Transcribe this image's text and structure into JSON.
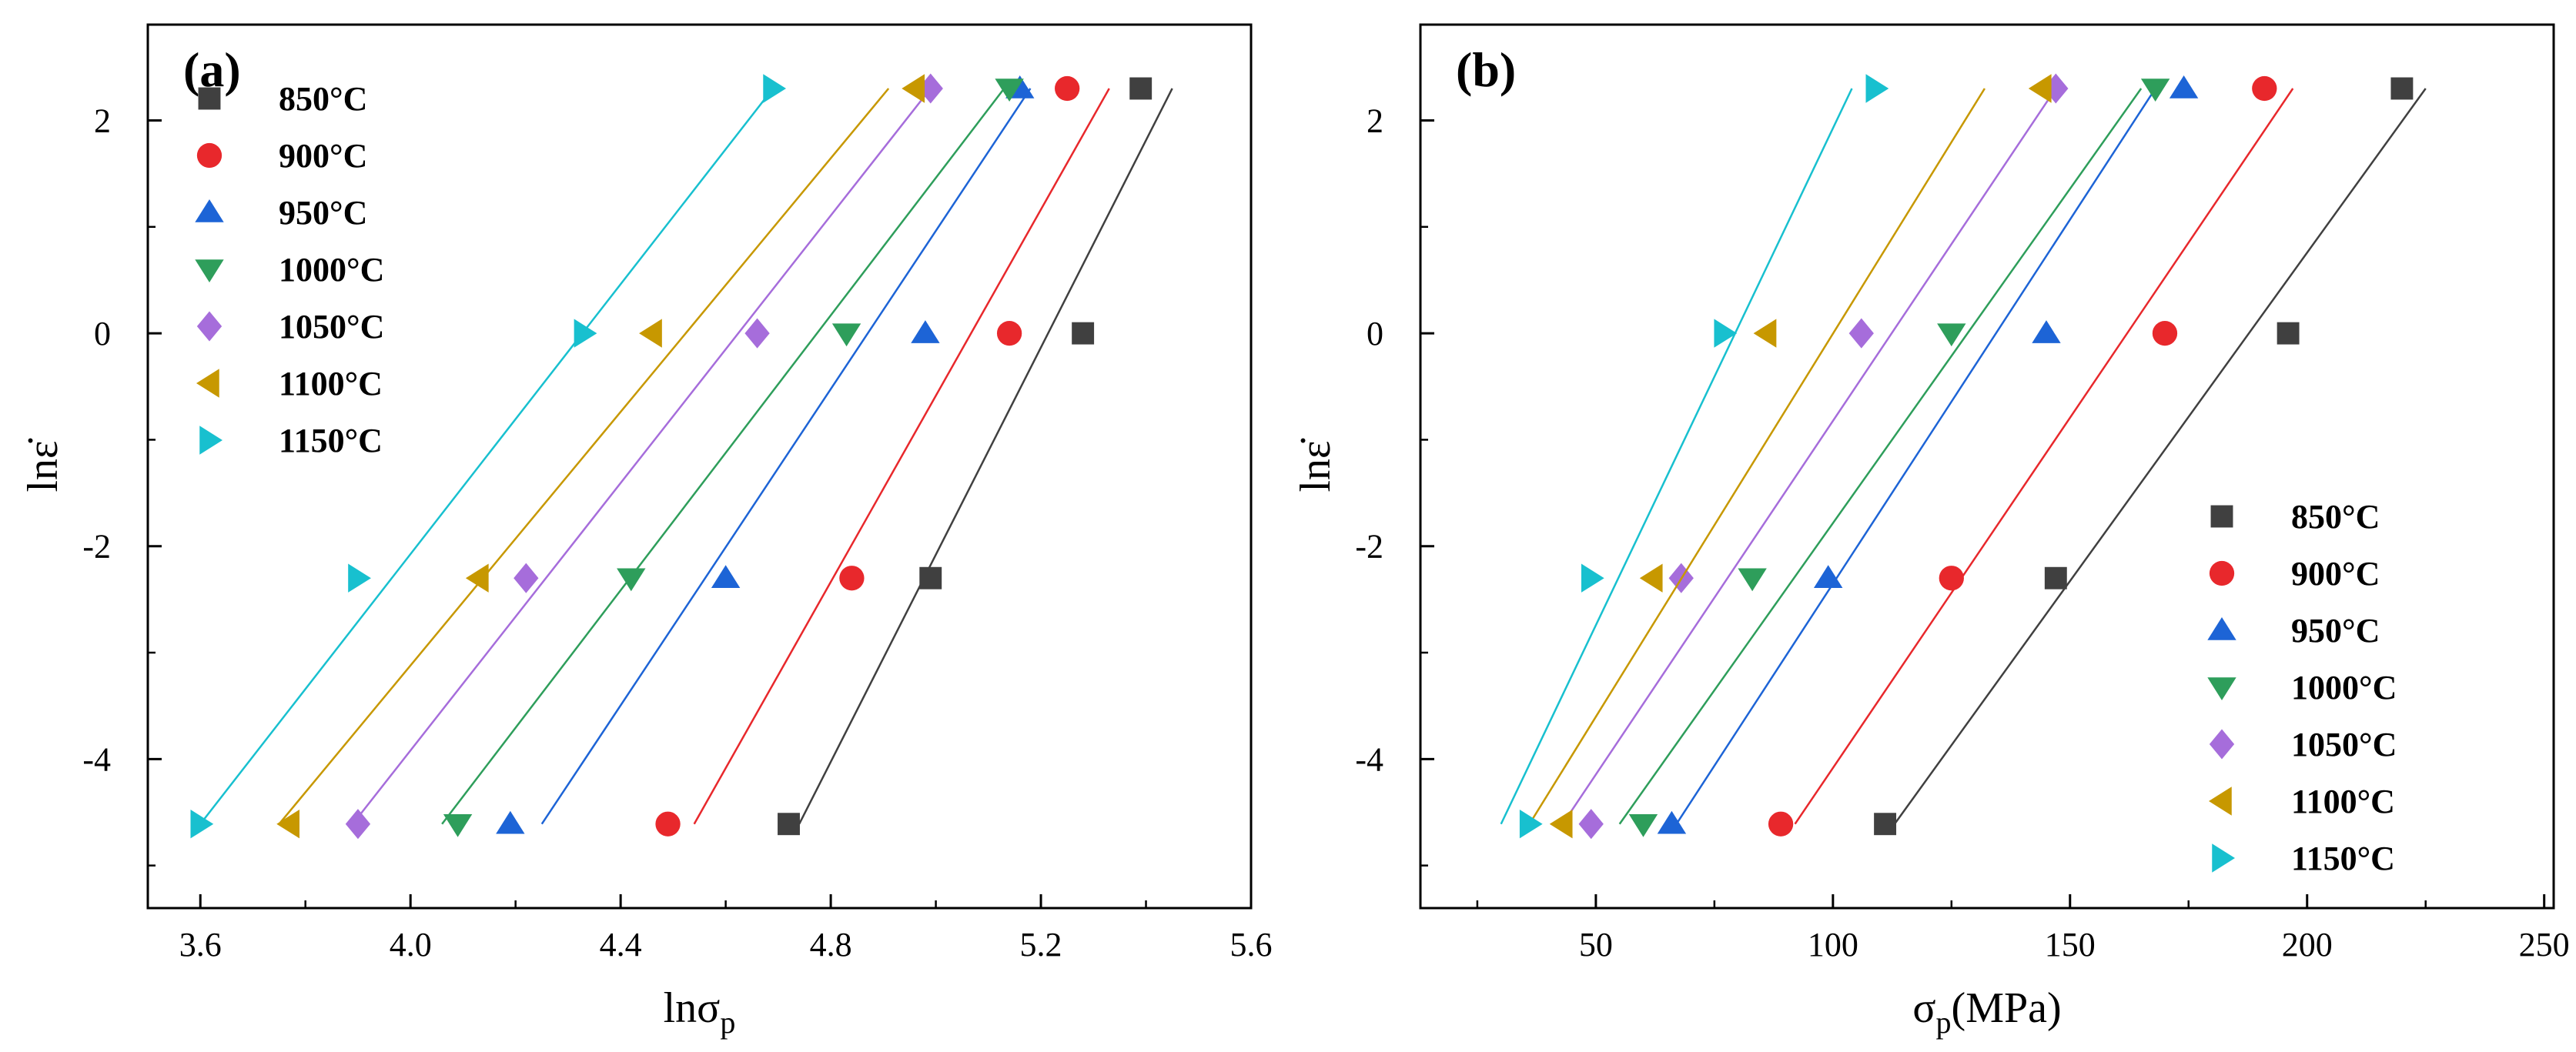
{
  "chart_data": [
    {
      "type": "scatter",
      "panel_label": "(a)",
      "xlabel": "lnσ",
      "xlabel_sub": "p",
      "ylabel": "lnε̇",
      "xlim": [
        3.5,
        5.6
      ],
      "ylim": [
        -5.4,
        2.9
      ],
      "xticks": [
        3.6,
        4.0,
        4.4,
        4.8,
        5.2,
        5.6
      ],
      "xtick_labels": [
        "3.6",
        "4.0",
        "4.4",
        "4.8",
        "5.2",
        "5.6"
      ],
      "yticks": [
        2,
        0,
        -2,
        -4
      ],
      "ytick_labels": [
        "2",
        "0",
        "-2",
        "-4"
      ],
      "legend_position": "top-left",
      "series": [
        {
          "name": "850°C",
          "color": "#404040",
          "marker": "square",
          "points": [
            [
              4.72,
              -4.61
            ],
            [
              4.99,
              -2.3
            ],
            [
              5.28,
              0.0
            ],
            [
              5.39,
              2.3
            ]
          ],
          "fit": [
            [
              4.74,
              -4.61
            ],
            [
              5.45,
              2.3
            ]
          ]
        },
        {
          "name": "900°C",
          "color": "#e8282c",
          "marker": "circle",
          "points": [
            [
              4.49,
              -4.61
            ],
            [
              4.84,
              -2.3
            ],
            [
              5.14,
              0.0
            ],
            [
              5.25,
              2.3
            ]
          ],
          "fit": [
            [
              4.54,
              -4.61
            ],
            [
              5.33,
              2.3
            ]
          ]
        },
        {
          "name": "950°C",
          "color": "#1d64d6",
          "marker": "triangle-up",
          "points": [
            [
              4.19,
              -4.61
            ],
            [
              4.6,
              -2.3
            ],
            [
              4.98,
              0.0
            ],
            [
              5.16,
              2.3
            ]
          ],
          "fit": [
            [
              4.25,
              -4.61
            ],
            [
              5.18,
              2.3
            ]
          ]
        },
        {
          "name": "1000°C",
          "color": "#2e9e5b",
          "marker": "triangle-down",
          "points": [
            [
              4.09,
              -4.61
            ],
            [
              4.42,
              -2.3
            ],
            [
              4.83,
              0.0
            ],
            [
              5.14,
              2.3
            ]
          ],
          "fit": [
            [
              4.06,
              -4.61
            ],
            [
              5.13,
              2.3
            ]
          ]
        },
        {
          "name": "1050°C",
          "color": "#a66ddb",
          "marker": "diamond",
          "points": [
            [
              3.9,
              -4.61
            ],
            [
              4.22,
              -2.3
            ],
            [
              4.66,
              0.0
            ],
            [
              4.99,
              2.3
            ]
          ],
          "fit": [
            [
              3.89,
              -4.61
            ],
            [
              4.99,
              2.3
            ]
          ]
        },
        {
          "name": "1100°C",
          "color": "#c79800",
          "marker": "triangle-left",
          "points": [
            [
              3.77,
              -4.61
            ],
            [
              4.13,
              -2.3
            ],
            [
              4.46,
              0.0
            ],
            [
              4.96,
              2.3
            ]
          ],
          "fit": [
            [
              3.75,
              -4.61
            ],
            [
              4.91,
              2.3
            ]
          ]
        },
        {
          "name": "1150°C",
          "color": "#18c0cf",
          "marker": "triangle-right",
          "points": [
            [
              3.6,
              -4.61
            ],
            [
              3.9,
              -2.3
            ],
            [
              4.33,
              0.0
            ],
            [
              4.69,
              2.3
            ]
          ],
          "fit": [
            [
              3.6,
              -4.61
            ],
            [
              4.69,
              2.3
            ]
          ]
        }
      ]
    },
    {
      "type": "scatter",
      "panel_label": "(b)",
      "xlabel": "σ",
      "xlabel_sub": "p",
      "xlabel_unit": "(MPa)",
      "ylabel": "lnε̇",
      "xlim": [
        13,
        252
      ],
      "ylim": [
        -5.4,
        2.9
      ],
      "xticks": [
        50,
        100,
        150,
        200,
        250
      ],
      "xtick_labels": [
        "50",
        "100",
        "150",
        "200",
        "250"
      ],
      "yticks": [
        2,
        0,
        -2,
        -4
      ],
      "ytick_labels": [
        "2",
        "0",
        "-2",
        "-4"
      ],
      "legend_position": "bottom-right",
      "series": [
        {
          "name": "850°C",
          "color": "#404040",
          "marker": "square",
          "points": [
            [
              111,
              -4.61
            ],
            [
              147,
              -2.3
            ],
            [
              196,
              0.0
            ],
            [
              220,
              2.3
            ]
          ],
          "fit": [
            [
              113,
              -4.61
            ],
            [
              225,
              2.3
            ]
          ]
        },
        {
          "name": "900°C",
          "color": "#e8282c",
          "marker": "circle",
          "points": [
            [
              89,
              -4.61
            ],
            [
              125,
              -2.3
            ],
            [
              170,
              0.0
            ],
            [
              191,
              2.3
            ]
          ],
          "fit": [
            [
              92,
              -4.61
            ],
            [
              197,
              2.3
            ]
          ]
        },
        {
          "name": "950°C",
          "color": "#1d64d6",
          "marker": "triangle-up",
          "points": [
            [
              66,
              -4.61
            ],
            [
              99,
              -2.3
            ],
            [
              145,
              0.0
            ],
            [
              174,
              2.3
            ]
          ],
          "fit": [
            [
              67,
              -4.61
            ],
            [
              168,
              2.3
            ]
          ]
        },
        {
          "name": "1000°C",
          "color": "#2e9e5b",
          "marker": "triangle-down",
          "points": [
            [
              60,
              -4.61
            ],
            [
              83,
              -2.3
            ],
            [
              125,
              0.0
            ],
            [
              168,
              2.3
            ]
          ],
          "fit": [
            [
              55,
              -4.61
            ],
            [
              165,
              2.3
            ]
          ]
        },
        {
          "name": "1050°C",
          "color": "#a66ddb",
          "marker": "diamond",
          "points": [
            [
              49,
              -4.61
            ],
            [
              68,
              -2.3
            ],
            [
              106,
              0.0
            ],
            [
              147,
              2.3
            ]
          ],
          "fit": [
            [
              43,
              -4.61
            ],
            [
              147,
              2.3
            ]
          ]
        },
        {
          "name": "1100°C",
          "color": "#c79800",
          "marker": "triangle-left",
          "points": [
            [
              43,
              -4.61
            ],
            [
              62,
              -2.3
            ],
            [
              86,
              0.0
            ],
            [
              144,
              2.3
            ]
          ],
          "fit": [
            [
              36,
              -4.61
            ],
            [
              132,
              2.3
            ]
          ]
        },
        {
          "name": "1150°C",
          "color": "#18c0cf",
          "marker": "triangle-right",
          "points": [
            [
              36,
              -4.61
            ],
            [
              49,
              -2.3
            ],
            [
              77,
              0.0
            ],
            [
              109,
              2.3
            ]
          ],
          "fit": [
            [
              30,
              -4.61
            ],
            [
              104,
              2.3
            ]
          ]
        }
      ]
    }
  ]
}
